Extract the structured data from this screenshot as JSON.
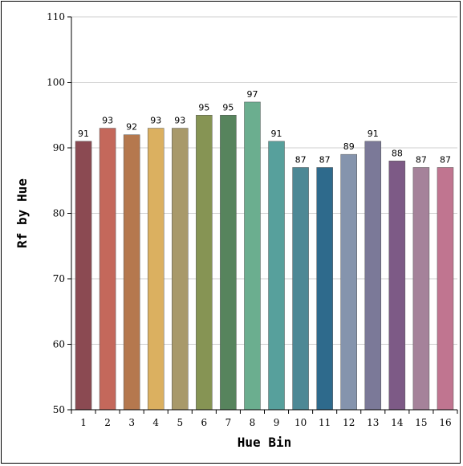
{
  "chart_data": {
    "type": "bar",
    "title": "",
    "xlabel": "Hue Bin",
    "ylabel": "Rf by Hue",
    "ylim": [
      50,
      110
    ],
    "yticks": [
      50,
      60,
      70,
      80,
      90,
      100,
      110
    ],
    "grid": true,
    "categories": [
      "1",
      "2",
      "3",
      "4",
      "5",
      "6",
      "7",
      "8",
      "9",
      "10",
      "11",
      "12",
      "13",
      "14",
      "15",
      "16"
    ],
    "values": [
      91,
      93,
      92,
      93,
      93,
      95,
      95,
      97,
      91,
      87,
      87,
      89,
      91,
      88,
      87,
      87
    ],
    "colors": [
      "#8b4a52",
      "#c4685b",
      "#b5784e",
      "#dbb060",
      "#a8996a",
      "#869454",
      "#57845d",
      "#6bae8f",
      "#57a09c",
      "#4d8895",
      "#2e6a8c",
      "#8594ad",
      "#7b7998",
      "#7d5a86",
      "#a5829a",
      "#c07590"
    ]
  }
}
